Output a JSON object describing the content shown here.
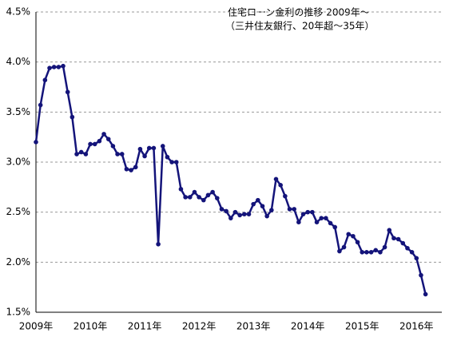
{
  "chart_data": {
    "type": "line",
    "title": "住宅ローン金利の推移  2009年～",
    "subtitle": "（三井住友銀行、20年超～35年）",
    "categories": [
      "2009年",
      null,
      null,
      null,
      null,
      null,
      null,
      null,
      null,
      null,
      null,
      null,
      "2010年",
      null,
      null,
      null,
      null,
      null,
      null,
      null,
      null,
      null,
      null,
      null,
      "2011年",
      null,
      null,
      null,
      null,
      null,
      null,
      null,
      null,
      null,
      null,
      null,
      "2012年",
      null,
      null,
      null,
      null,
      null,
      null,
      null,
      null,
      null,
      null,
      null,
      "2013年",
      null,
      null,
      null,
      null,
      null,
      null,
      null,
      null,
      null,
      null,
      null,
      "2014年",
      null,
      null,
      null,
      null,
      null,
      null,
      null,
      null,
      null,
      null,
      null,
      "2015年",
      null,
      null,
      null,
      null,
      null,
      null,
      null,
      null,
      null,
      null,
      null,
      "2016年",
      null,
      null
    ],
    "values": [
      3.2,
      3.57,
      3.82,
      3.94,
      3.95,
      3.95,
      3.96,
      3.7,
      3.45,
      3.08,
      3.1,
      3.08,
      3.18,
      3.18,
      3.21,
      3.28,
      3.23,
      3.16,
      3.08,
      3.08,
      2.93,
      2.92,
      2.95,
      3.13,
      3.06,
      3.14,
      3.14,
      2.18,
      3.16,
      3.05,
      3.0,
      3.0,
      2.73,
      2.65,
      2.65,
      2.7,
      2.65,
      2.62,
      2.67,
      2.7,
      2.64,
      2.53,
      2.51,
      2.44,
      2.5,
      2.47,
      2.48,
      2.48,
      2.58,
      2.62,
      2.56,
      2.46,
      2.52,
      2.83,
      2.77,
      2.66,
      2.53,
      2.53,
      2.4,
      2.48,
      2.5,
      2.5,
      2.4,
      2.44,
      2.44,
      2.39,
      2.35,
      2.11,
      2.15,
      2.28,
      2.26,
      2.2,
      2.1,
      2.1,
      2.1,
      2.12,
      2.1,
      2.15,
      2.32,
      2.24,
      2.23,
      2.19,
      2.14,
      2.1,
      2.04,
      1.87,
      1.68
    ],
    "color": "#14147a",
    "ylim": [
      1.5,
      4.5
    ],
    "yticks": [
      {
        "value": 1.5,
        "label": "1.5%"
      },
      {
        "value": 2.0,
        "label": "2.0%"
      },
      {
        "value": 2.5,
        "label": "2.5%"
      },
      {
        "value": 3.0,
        "label": "3.0%"
      },
      {
        "value": 3.5,
        "label": "3.5%"
      },
      {
        "value": 4.0,
        "label": "4.0%"
      },
      {
        "value": 4.5,
        "label": "4.5%"
      }
    ],
    "grid": true
  }
}
